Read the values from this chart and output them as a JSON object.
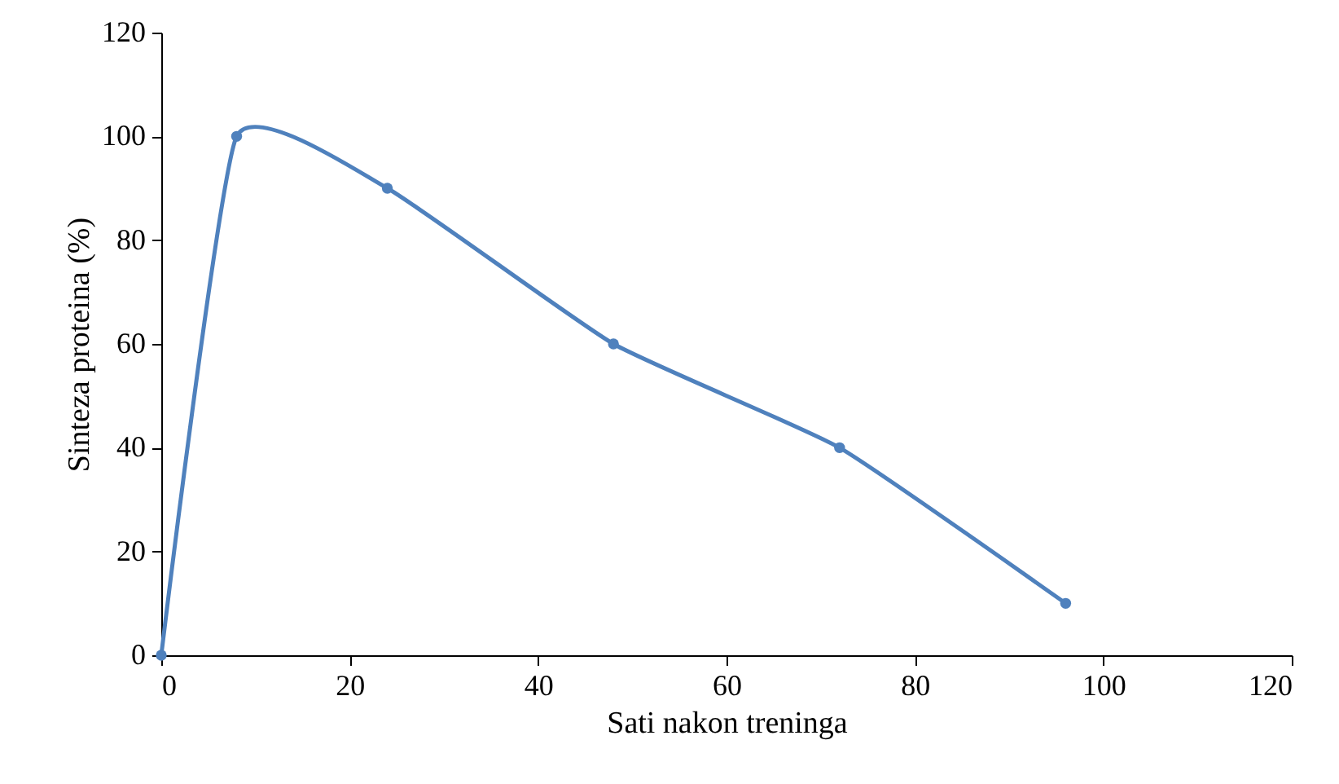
{
  "chart_data": {
    "type": "line",
    "xlabel": "Sati nakon treninga",
    "ylabel": "Sinteza proteina (%)",
    "x": [
      0,
      8,
      24,
      48,
      72,
      96
    ],
    "series": [
      {
        "color": "#4f81bd",
        "values": [
          0,
          100,
          90,
          60,
          40,
          10
        ]
      }
    ],
    "xlim": [
      0,
      120
    ],
    "xticks": [
      0,
      20,
      40,
      60,
      80,
      100,
      120
    ],
    "ylim": [
      0,
      120
    ],
    "yticks": [
      0,
      20,
      40,
      60,
      80,
      100,
      120
    ],
    "grid": false,
    "marker": "circle",
    "line_style": "solid"
  }
}
